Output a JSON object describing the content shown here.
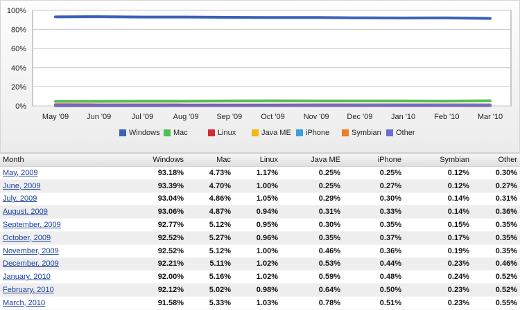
{
  "chart_data": {
    "type": "line",
    "categories": [
      "May '09",
      "Jun '09",
      "Jul '09",
      "Aug '09",
      "Sep '09",
      "Oct '09",
      "Nov '09",
      "Dec '09",
      "Jan '10",
      "Feb '10",
      "Mar '10"
    ],
    "y_ticks": [
      "100%",
      "80%",
      "60%",
      "40%",
      "20%",
      "0%"
    ],
    "ylim": [
      0,
      100
    ],
    "grid": true,
    "legend_position": "bottom",
    "series": [
      {
        "name": "Windows",
        "color": "#3a62b8",
        "values": [
          93.18,
          93.39,
          93.04,
          93.06,
          92.77,
          92.52,
          92.52,
          92.21,
          92.0,
          92.12,
          91.58
        ]
      },
      {
        "name": "Mac",
        "color": "#4fbf4f",
        "values": [
          4.73,
          4.7,
          4.86,
          4.87,
          5.12,
          5.27,
          5.12,
          5.11,
          5.16,
          5.02,
          5.33
        ]
      },
      {
        "name": "Linux",
        "color": "#d62a3a",
        "values": [
          1.17,
          1.0,
          1.05,
          0.94,
          0.95,
          0.96,
          1.0,
          1.02,
          1.02,
          0.98,
          1.03
        ]
      },
      {
        "name": "Java ME",
        "color": "#f2b90f",
        "values": [
          0.25,
          0.25,
          0.29,
          0.31,
          0.3,
          0.35,
          0.46,
          0.53,
          0.59,
          0.64,
          0.78
        ]
      },
      {
        "name": "iPhone",
        "color": "#3aa0de",
        "values": [
          0.25,
          0.27,
          0.3,
          0.33,
          0.35,
          0.37,
          0.36,
          0.44,
          0.48,
          0.5,
          0.51
        ]
      },
      {
        "name": "Symbian",
        "color": "#ee7d1f",
        "values": [
          0.12,
          0.12,
          0.14,
          0.14,
          0.15,
          0.17,
          0.19,
          0.23,
          0.24,
          0.23,
          0.23
        ]
      },
      {
        "name": "Other",
        "color": "#6a6fd0",
        "values": [
          0.3,
          0.27,
          0.31,
          0.36,
          0.35,
          0.35,
          0.35,
          0.46,
          0.52,
          0.52,
          0.55
        ]
      }
    ]
  },
  "table": {
    "headers": [
      "Month",
      "Windows",
      "Mac",
      "Linux",
      "Java ME",
      "iPhone",
      "Symbian",
      "Other"
    ],
    "rows": [
      [
        "May, 2009",
        "93.18%",
        "4.73%",
        "1.17%",
        "0.25%",
        "0.25%",
        "0.12%",
        "0.30%"
      ],
      [
        "June, 2009",
        "93.39%",
        "4.70%",
        "1.00%",
        "0.25%",
        "0.27%",
        "0.12%",
        "0.27%"
      ],
      [
        "July, 2009",
        "93.04%",
        "4.86%",
        "1.05%",
        "0.29%",
        "0.30%",
        "0.14%",
        "0.31%"
      ],
      [
        "August, 2009",
        "93.06%",
        "4.87%",
        "0.94%",
        "0.31%",
        "0.33%",
        "0.14%",
        "0.36%"
      ],
      [
        "September, 2009",
        "92.77%",
        "5.12%",
        "0.95%",
        "0.30%",
        "0.35%",
        "0.15%",
        "0.35%"
      ],
      [
        "October, 2009",
        "92.52%",
        "5.27%",
        "0.96%",
        "0.35%",
        "0.37%",
        "0.17%",
        "0.35%"
      ],
      [
        "November, 2009",
        "92.52%",
        "5.12%",
        "1.00%",
        "0.46%",
        "0.36%",
        "0.19%",
        "0.35%"
      ],
      [
        "December, 2009",
        "92.21%",
        "5.11%",
        "1.02%",
        "0.53%",
        "0.44%",
        "0.23%",
        "0.46%"
      ],
      [
        "January, 2010",
        "92.00%",
        "5.16%",
        "1.02%",
        "0.59%",
        "0.48%",
        "0.24%",
        "0.52%"
      ],
      [
        "February, 2010",
        "92.12%",
        "5.02%",
        "0.98%",
        "0.64%",
        "0.50%",
        "0.23%",
        "0.52%"
      ],
      [
        "March, 2010",
        "91.58%",
        "5.33%",
        "1.03%",
        "0.78%",
        "0.51%",
        "0.23%",
        "0.55%"
      ]
    ]
  }
}
